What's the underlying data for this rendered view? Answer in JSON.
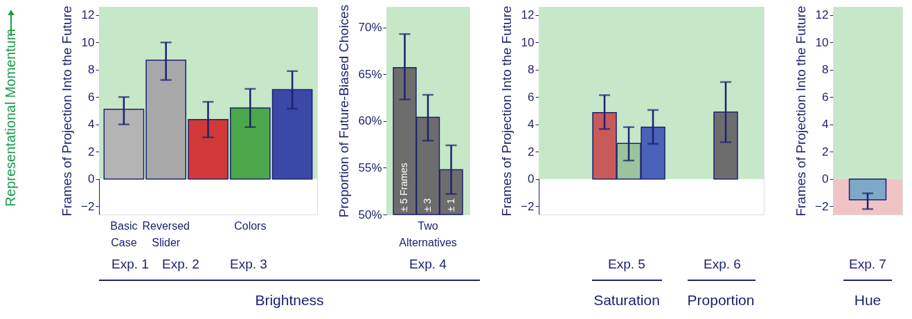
{
  "chart_data": [
    {
      "type": "bar",
      "ylabel": "Frames of Projection Into the Future",
      "categories": [
        "Basic Case",
        "Reversed Slider",
        null,
        "Colors",
        null
      ],
      "values": [
        5.1,
        8.7,
        4.35,
        5.2,
        6.55
      ],
      "errors": [
        [
          4.0,
          6.0
        ],
        [
          7.25,
          10.0
        ],
        [
          3.05,
          5.65
        ],
        [
          3.8,
          6.6
        ],
        [
          5.15,
          7.9
        ]
      ],
      "colors": [
        "#b4b4b4",
        "#a8a8a8",
        "#d23a3a",
        "#4aa84a",
        "#3a48a8"
      ],
      "ylim": [
        -2.6,
        12.6
      ],
      "yticks": [
        {
          "value": -2,
          "label": "−2"
        },
        0,
        2,
        4,
        6,
        8,
        10,
        12
      ],
      "bands": [
        {
          "axis": "y",
          "from": 0,
          "to": 12.6,
          "color": "#c6e7c8"
        }
      ],
      "annotations": [
        "Representational Momentum",
        "Exp. 1",
        "Exp. 2",
        "Exp. 3",
        "Brightness"
      ]
    },
    {
      "type": "bar",
      "ylabel": "Proportion of Future-Biased Choices",
      "categories": [
        null,
        "Two Alternatives",
        null
      ],
      "values": [
        65.7,
        60.4,
        54.8
      ],
      "errors": [
        [
          62.3,
          69.3
        ],
        [
          57.9,
          62.8
        ],
        [
          52.2,
          57.4
        ]
      ],
      "colors": [
        "#6d6d6d",
        "#6d6d6d",
        "#6d6d6d"
      ],
      "ylim": [
        50,
        72.2
      ],
      "yticks": [
        {
          "value": 50,
          "label": "50%"
        },
        {
          "value": 55,
          "label": "55%"
        },
        {
          "value": 60,
          "label": "60%"
        },
        {
          "value": 65,
          "label": "65%"
        },
        {
          "value": 70,
          "label": "70%"
        }
      ],
      "bands": [
        {
          "axis": "y",
          "from": 50,
          "to": 72.2,
          "color": "#c6e7c8"
        }
      ],
      "annotations": [
        "± 5 Frames",
        "± 3",
        "± 1",
        "Exp. 4"
      ]
    },
    {
      "type": "bar",
      "ylabel": "Frames of Projection Into the Future",
      "categories": [
        null,
        null,
        null,
        null
      ],
      "values": [
        4.86,
        2.6,
        3.8,
        4.9
      ],
      "errors": [
        [
          3.66,
          6.14
        ],
        [
          1.35,
          3.8
        ],
        [
          2.57,
          5.05
        ],
        [
          2.7,
          7.1
        ]
      ],
      "colors": [
        "#c85a5a",
        "#9cc49c",
        "#4a62b8",
        "#6d6d6d"
      ],
      "ylim": [
        -2.6,
        12.6
      ],
      "yticks": [
        {
          "value": -2,
          "label": "−2"
        },
        0,
        2,
        4,
        6,
        8,
        10,
        12
      ],
      "bands": [
        {
          "axis": "y",
          "from": 0,
          "to": 12.6,
          "color": "#c6e7c8"
        }
      ],
      "annotations": [
        "Exp. 5",
        "Exp. 6",
        "Saturation",
        "Proportion"
      ]
    },
    {
      "type": "bar",
      "ylabel": "Frames of Projection Into the Future",
      "categories": [
        null
      ],
      "values": [
        -1.52
      ],
      "errors": [
        [
          -2.2,
          -1.05
        ]
      ],
      "colors": [
        "#7fa8c8"
      ],
      "ylim": [
        -2.6,
        12.6
      ],
      "yticks": [
        {
          "value": -2,
          "label": "−2"
        },
        0,
        2,
        4,
        6,
        8,
        10,
        12
      ],
      "bands": [
        {
          "axis": "y",
          "from": 0,
          "to": 12.6,
          "color": "#c6e7c8"
        },
        {
          "axis": "y",
          "from": -2.6,
          "to": 0,
          "color": "#f0c4c4"
        }
      ],
      "annotations": [
        "Exp. 7",
        "Hue"
      ]
    }
  ]
}
